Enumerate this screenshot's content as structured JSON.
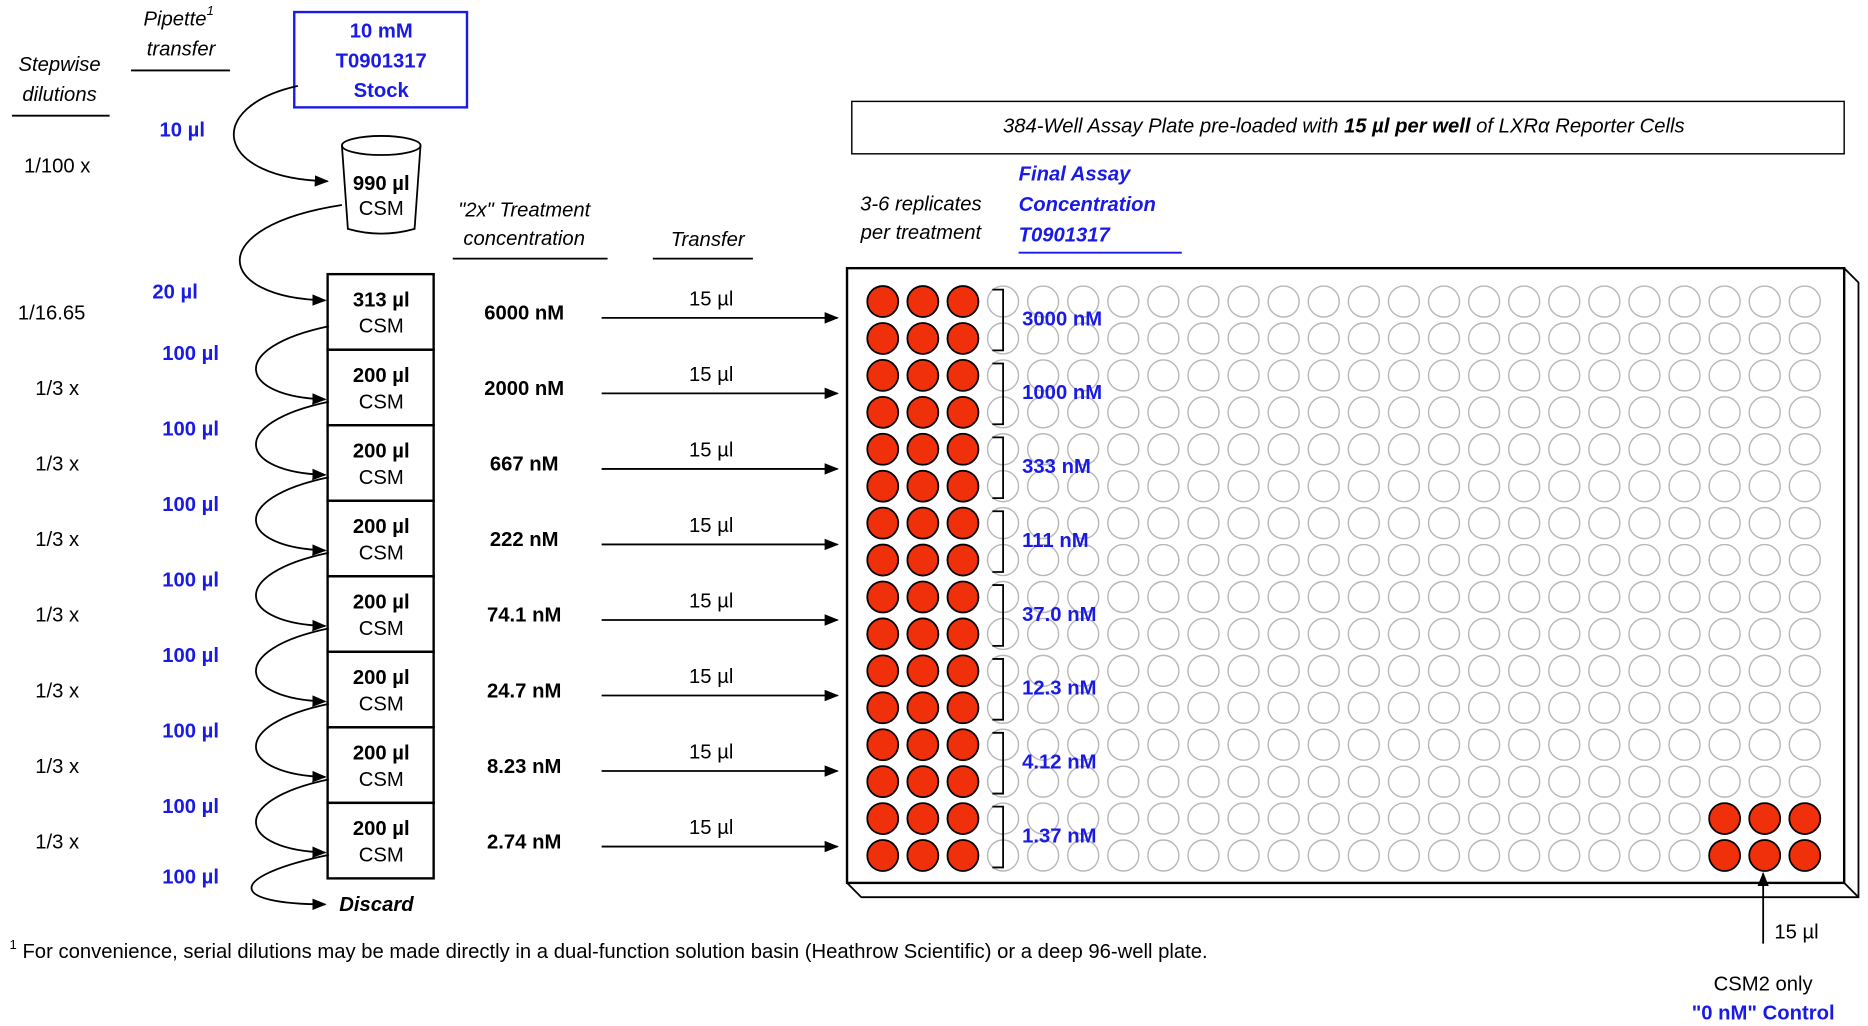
{
  "headers": {
    "stepwise": [
      "Stepwise",
      "dilutions"
    ],
    "pipette": [
      "Pipette",
      "transfer"
    ],
    "pipette_sup": "1",
    "treatment": [
      "\"2x\" Treatment",
      "concentration"
    ],
    "transfer": "Transfer",
    "replicates": [
      "3-6 replicates",
      "per treatment"
    ],
    "final": [
      "Final Assay",
      "Concentration",
      "T0901317"
    ]
  },
  "stock": [
    "10 mM",
    "T0901317",
    "Stock"
  ],
  "first_step": {
    "ratio": "1/100 x",
    "volume": "10 µl",
    "beaker_volume": "990 µl",
    "beaker_medium": "CSM"
  },
  "rows": [
    {
      "ratio": "1/16.65",
      "in_volume": "20 µl",
      "tube_volume": "313 µl",
      "medium": "CSM",
      "conc_2x": "6000 nM",
      "transfer": "15 µl",
      "final": "3000 nM"
    },
    {
      "ratio": "1/3 x",
      "in_volume": "100 µl",
      "tube_volume": "200 µl",
      "medium": "CSM",
      "conc_2x": "2000 nM",
      "transfer": "15 µl",
      "final": "1000 nM"
    },
    {
      "ratio": "1/3 x",
      "in_volume": "100 µl",
      "tube_volume": "200 µl",
      "medium": "CSM",
      "conc_2x": "667 nM",
      "transfer": "15 µl",
      "final": "333 nM"
    },
    {
      "ratio": "1/3 x",
      "in_volume": "100 µl",
      "tube_volume": "200 µl",
      "medium": "CSM",
      "conc_2x": "222 nM",
      "transfer": "15 µl",
      "final": "111 nM"
    },
    {
      "ratio": "1/3 x",
      "in_volume": "100 µl",
      "tube_volume": "200 µl",
      "medium": "CSM",
      "conc_2x": "74.1 nM",
      "transfer": "15 µl",
      "final": "37.0 nM"
    },
    {
      "ratio": "1/3 x",
      "in_volume": "100 µl",
      "tube_volume": "200 µl",
      "medium": "CSM",
      "conc_2x": "24.7 nM",
      "transfer": "15 µl",
      "final": "12.3 nM"
    },
    {
      "ratio": "1/3 x",
      "in_volume": "100 µl",
      "tube_volume": "200 µl",
      "medium": "CSM",
      "conc_2x": "8.23 nM",
      "transfer": "15 µl",
      "final": "4.12 nM"
    },
    {
      "ratio": "1/3 x",
      "in_volume": "100 µl",
      "tube_volume": "200 µl",
      "medium": "CSM",
      "conc_2x": "2.74 nM",
      "transfer": "15 µl",
      "final": "1.37 nM"
    }
  ],
  "discard": {
    "volume": "100 µl",
    "label": "Discard"
  },
  "plate_title": {
    "before": "384-Well Assay Plate pre-loaded with ",
    "bold": "15 µl per well",
    "after": " of LXRα Reporter Cells"
  },
  "control": {
    "volume": "15 µl",
    "medium": "CSM2 only",
    "label": "\"0 nM\" Control"
  },
  "footnote": {
    "marker": "1",
    "text": " For convenience, serial dilutions may be made directly in a dual-function solution basin (Heathrow Scientific) or a deep 96-well plate."
  }
}
